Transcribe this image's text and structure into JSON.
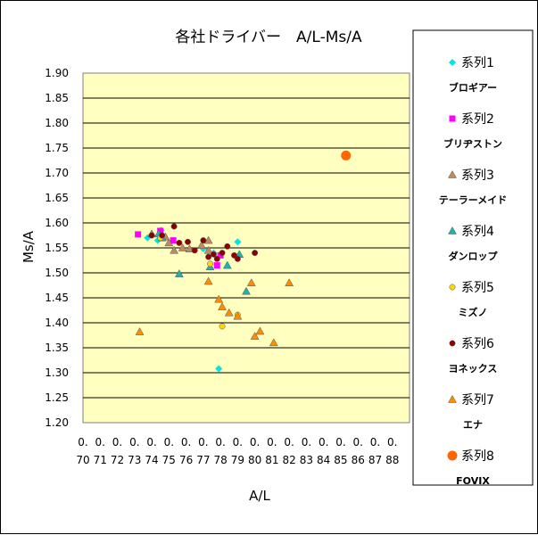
{
  "chart_data": {
    "type": "scatter",
    "title": "各社ドライバー　A/L-Ms/A",
    "xlabel": "A/L",
    "ylabel": "Ms/A",
    "xlim": [
      0.7,
      0.89
    ],
    "ylim": [
      1.2,
      1.9
    ],
    "x_ticks": [
      {
        "top": "0.",
        "bottom": "70"
      },
      {
        "top": "0.",
        "bottom": "71"
      },
      {
        "top": "0.",
        "bottom": "72"
      },
      {
        "top": "0.",
        "bottom": "73"
      },
      {
        "top": "0.",
        "bottom": "74"
      },
      {
        "top": "0.",
        "bottom": "75"
      },
      {
        "top": "0.",
        "bottom": "76"
      },
      {
        "top": "0.",
        "bottom": "77"
      },
      {
        "top": "0.",
        "bottom": "78"
      },
      {
        "top": "0.",
        "bottom": "79"
      },
      {
        "top": "0.",
        "bottom": "80"
      },
      {
        "top": "0.",
        "bottom": "81"
      },
      {
        "top": "0.",
        "bottom": "82"
      },
      {
        "top": "0.",
        "bottom": "83"
      },
      {
        "top": "0.",
        "bottom": "84"
      },
      {
        "top": "0.",
        "bottom": "85"
      },
      {
        "top": "0.",
        "bottom": "86"
      },
      {
        "top": "0.",
        "bottom": "87"
      },
      {
        "top": "0.",
        "bottom": "88"
      }
    ],
    "y_ticks": [
      "1.20",
      "1.25",
      "1.30",
      "1.35",
      "1.40",
      "1.45",
      "1.50",
      "1.55",
      "1.60",
      "1.65",
      "1.70",
      "1.75",
      "1.80",
      "1.85",
      "1.90"
    ],
    "grid": true,
    "legend_position": "right",
    "plot_background": "#ffffc0",
    "series": [
      {
        "name": "系列1",
        "note": "ブロギアー",
        "marker": "diamond",
        "color": "#00e5e5",
        "points": [
          [
            0.7375,
            1.57
          ],
          [
            0.7435,
            1.565
          ],
          [
            0.7455,
            1.585
          ],
          [
            0.77,
            1.548
          ],
          [
            0.776,
            1.54
          ],
          [
            0.79,
            1.562
          ],
          [
            0.779,
            1.308
          ]
        ]
      },
      {
        "name": "系列2",
        "note": "ブリヂストン",
        "marker": "square",
        "color": "#ff00ff",
        "points": [
          [
            0.732,
            1.577
          ],
          [
            0.745,
            1.584
          ],
          [
            0.7525,
            1.565
          ],
          [
            0.778,
            1.515
          ],
          [
            0.78,
            1.535
          ]
        ]
      },
      {
        "name": "系列3",
        "note": "テーラーメイド",
        "marker": "triangle",
        "color": "#c08a60",
        "points": [
          [
            0.74,
            1.578
          ],
          [
            0.748,
            1.572
          ],
          [
            0.75,
            1.56
          ],
          [
            0.753,
            1.545
          ],
          [
            0.758,
            1.55
          ],
          [
            0.762,
            1.548
          ],
          [
            0.769,
            1.555
          ],
          [
            0.773,
            1.565
          ],
          [
            0.773,
            1.545
          ]
        ]
      },
      {
        "name": "系列4",
        "note": "ダンロップ",
        "marker": "triangle",
        "color": "#20b2aa",
        "points": [
          [
            0.744,
            1.578
          ],
          [
            0.746,
            1.57
          ],
          [
            0.756,
            1.498
          ],
          [
            0.774,
            1.512
          ],
          [
            0.784,
            1.515
          ],
          [
            0.791,
            1.537
          ],
          [
            0.795,
            1.463
          ]
        ]
      },
      {
        "name": "系列5",
        "note": "ミズノ",
        "marker": "circle",
        "color": "#ffd700",
        "points": [
          [
            0.774,
            1.518
          ],
          [
            0.781,
            1.393
          ],
          [
            0.79,
            1.416
          ],
          [
            0.745,
            1.57
          ]
        ]
      },
      {
        "name": "系列6",
        "note": "ヨネックス",
        "marker": "circle",
        "color": "#8b0000",
        "points": [
          [
            0.74,
            1.575
          ],
          [
            0.746,
            1.575
          ],
          [
            0.753,
            1.593
          ],
          [
            0.756,
            1.56
          ],
          [
            0.761,
            1.562
          ],
          [
            0.765,
            1.545
          ],
          [
            0.77,
            1.565
          ],
          [
            0.773,
            1.532
          ],
          [
            0.776,
            1.537
          ],
          [
            0.778,
            1.528
          ],
          [
            0.781,
            1.54
          ],
          [
            0.784,
            1.553
          ],
          [
            0.788,
            1.535
          ],
          [
            0.79,
            1.528
          ],
          [
            0.8,
            1.54
          ]
        ]
      },
      {
        "name": "系列7",
        "note": "エナ",
        "marker": "triangle",
        "color": "#ff8c00",
        "points": [
          [
            0.733,
            1.382
          ],
          [
            0.773,
            1.483
          ],
          [
            0.779,
            1.447
          ],
          [
            0.781,
            1.432
          ],
          [
            0.785,
            1.42
          ],
          [
            0.79,
            1.413
          ],
          [
            0.798,
            1.48
          ],
          [
            0.8,
            1.373
          ],
          [
            0.803,
            1.383
          ],
          [
            0.811,
            1.36
          ],
          [
            0.82,
            1.48
          ]
        ]
      },
      {
        "name": "系列8",
        "note": "FOVIX",
        "marker": "circle-large",
        "color": "#ff6600",
        "points": [
          [
            0.853,
            1.735
          ]
        ]
      }
    ]
  }
}
